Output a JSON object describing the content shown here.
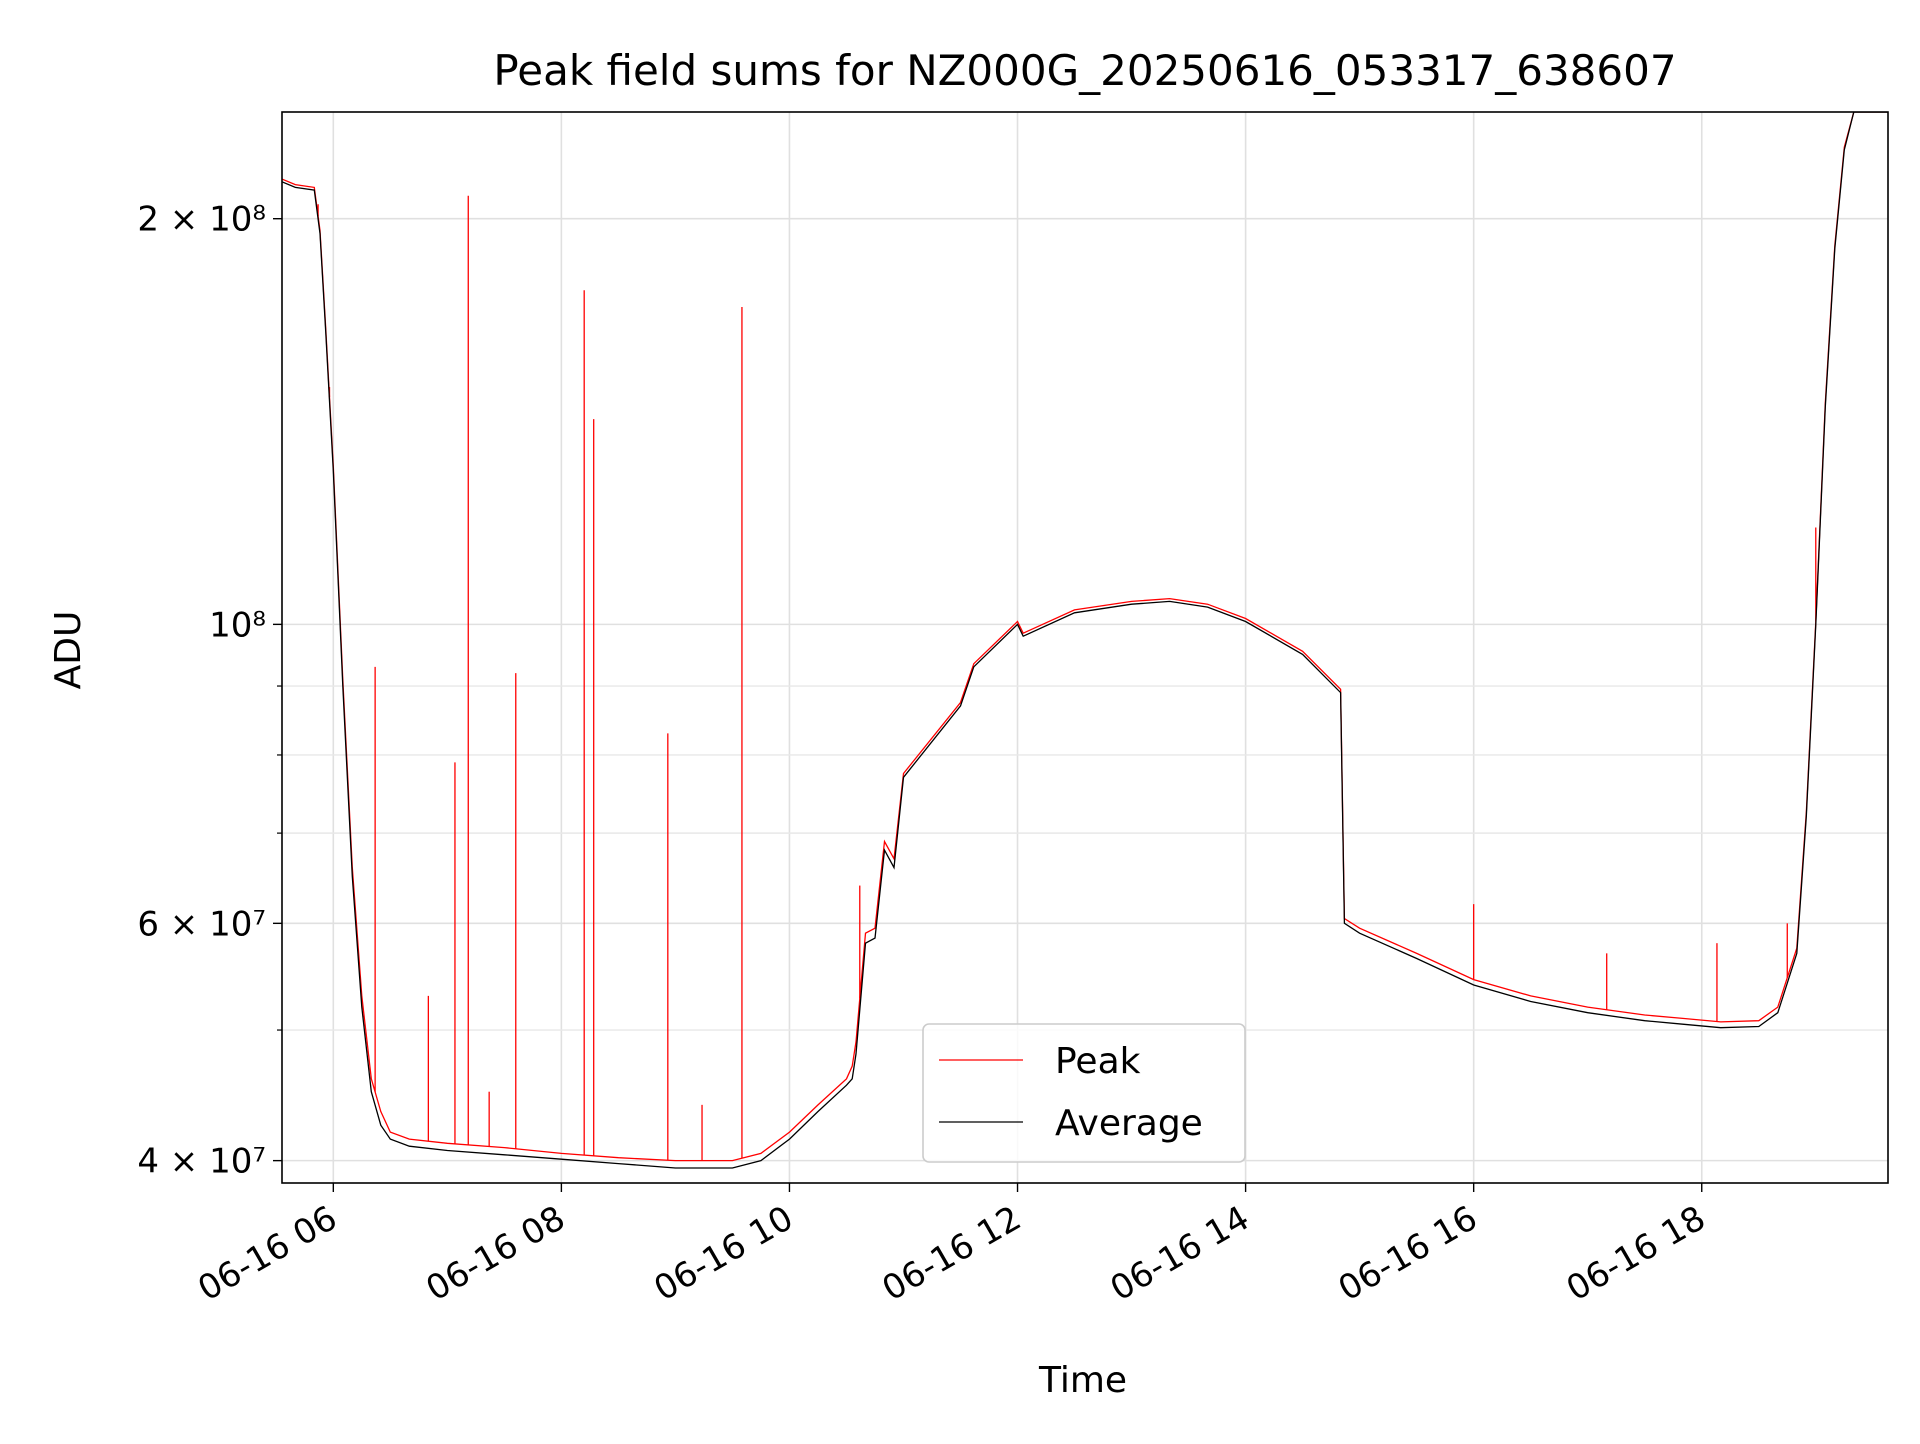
{
  "chart_data": {
    "type": "line",
    "title": "Peak field sums for NZ000G_20250616_053317_638607",
    "xlabel": "Time",
    "ylabel": "ADU",
    "y_scale": "log",
    "xlim": [
      "2025-06-16 05:33",
      "2025-06-16 19:38"
    ],
    "ylim": [
      38500000,
      240000000
    ],
    "x_ticks": [
      "06-16 06",
      "06-16 08",
      "06-16 10",
      "06-16 12",
      "06-16 14",
      "06-16 16",
      "06-16 18"
    ],
    "y_ticks": [
      "4 × 10⁷",
      "6 × 10⁷",
      "10⁸",
      "2 × 10⁸"
    ],
    "grid": true,
    "legend_position": "lower center",
    "colors": {
      "Peak": "#ff0000",
      "Average": "#000000"
    },
    "series": [
      {
        "name": "Average",
        "x": [
          "2025-06-16 05:33",
          "2025-06-16 05:40",
          "2025-06-16 05:50",
          "2025-06-16 05:53",
          "2025-06-16 05:56",
          "2025-06-16 06:00",
          "2025-06-16 06:05",
          "2025-06-16 06:10",
          "2025-06-16 06:15",
          "2025-06-16 06:20",
          "2025-06-16 06:25",
          "2025-06-16 06:30",
          "2025-06-16 06:40",
          "2025-06-16 07:00",
          "2025-06-16 07:30",
          "2025-06-16 08:00",
          "2025-06-16 08:30",
          "2025-06-16 09:00",
          "2025-06-16 09:30",
          "2025-06-16 09:45",
          "2025-06-16 10:00",
          "2025-06-16 10:15",
          "2025-06-16 10:30",
          "2025-06-16 10:33",
          "2025-06-16 10:35",
          "2025-06-16 10:40",
          "2025-06-16 10:45",
          "2025-06-16 10:50",
          "2025-06-16 10:55",
          "2025-06-16 11:00",
          "2025-06-16 11:30",
          "2025-06-16 11:37",
          "2025-06-16 12:00",
          "2025-06-16 12:03",
          "2025-06-16 12:30",
          "2025-06-16 13:00",
          "2025-06-16 13:20",
          "2025-06-16 13:40",
          "2025-06-16 14:00",
          "2025-06-16 14:30",
          "2025-06-16 14:50",
          "2025-06-16 14:52",
          "2025-06-16 15:00",
          "2025-06-16 15:30",
          "2025-06-16 16:00",
          "2025-06-16 16:30",
          "2025-06-16 17:00",
          "2025-06-16 17:30",
          "2025-06-16 17:50",
          "2025-06-16 18:10",
          "2025-06-16 18:30",
          "2025-06-16 18:40",
          "2025-06-16 18:50",
          "2025-06-16 18:55",
          "2025-06-16 19:00",
          "2025-06-16 19:05",
          "2025-06-16 19:10",
          "2025-06-16 19:15",
          "2025-06-16 19:20",
          "2025-06-16 19:25",
          "2025-06-16 19:30",
          "2025-06-16 19:38"
        ],
        "y": [
          213000000,
          211000000,
          210000000,
          195000000,
          165000000,
          130000000,
          90000000,
          65000000,
          52000000,
          45000000,
          42500000,
          41500000,
          41000000,
          40700000,
          40400000,
          40100000,
          39800000,
          39500000,
          39500000,
          40000000,
          41500000,
          43500000,
          45500000,
          46000000,
          48000000,
          58000000,
          58500000,
          68000000,
          66000000,
          77000000,
          87000000,
          93000000,
          100000000,
          98000000,
          102000000,
          103500000,
          104000000,
          103000000,
          100500000,
          95000000,
          89000000,
          60000000,
          59000000,
          56500000,
          54000000,
          52500000,
          51500000,
          50800000,
          50500000,
          50200000,
          50300000,
          51500000,
          57000000,
          72000000,
          100000000,
          145000000,
          190000000,
          225000000,
          240000000,
          242000000,
          243000000,
          243000000
        ]
      },
      {
        "name": "Peak",
        "x": [
          "2025-06-16 05:33",
          "2025-06-16 05:40",
          "2025-06-16 05:50",
          "2025-06-16 05:53",
          "2025-06-16 05:56",
          "2025-06-16 06:00",
          "2025-06-16 06:05",
          "2025-06-16 06:10",
          "2025-06-16 06:15",
          "2025-06-16 06:20",
          "2025-06-16 06:25",
          "2025-06-16 06:30",
          "2025-06-16 06:40",
          "2025-06-16 07:00",
          "2025-06-16 07:30",
          "2025-06-16 08:00",
          "2025-06-16 08:30",
          "2025-06-16 09:00",
          "2025-06-16 09:30",
          "2025-06-16 09:45",
          "2025-06-16 10:00",
          "2025-06-16 10:15",
          "2025-06-16 10:30",
          "2025-06-16 10:33",
          "2025-06-16 10:35",
          "2025-06-16 10:40",
          "2025-06-16 10:45",
          "2025-06-16 10:50",
          "2025-06-16 10:55",
          "2025-06-16 11:00",
          "2025-06-16 11:30",
          "2025-06-16 11:37",
          "2025-06-16 12:00",
          "2025-06-16 12:03",
          "2025-06-16 12:30",
          "2025-06-16 13:00",
          "2025-06-16 13:20",
          "2025-06-16 13:40",
          "2025-06-16 14:00",
          "2025-06-16 14:30",
          "2025-06-16 14:50",
          "2025-06-16 14:52",
          "2025-06-16 15:00",
          "2025-06-16 15:30",
          "2025-06-16 16:00",
          "2025-06-16 16:30",
          "2025-06-16 17:00",
          "2025-06-16 17:30",
          "2025-06-16 17:50",
          "2025-06-16 18:10",
          "2025-06-16 18:30",
          "2025-06-16 18:40",
          "2025-06-16 18:50",
          "2025-06-16 18:55",
          "2025-06-16 19:00",
          "2025-06-16 19:05",
          "2025-06-16 19:10",
          "2025-06-16 19:15",
          "2025-06-16 19:20",
          "2025-06-16 19:25",
          "2025-06-16 19:30",
          "2025-06-16 19:38"
        ],
        "y": [
          214000000,
          212000000,
          211000000,
          196000000,
          166000000,
          131000000,
          91000000,
          66000000,
          53000000,
          46000000,
          43500000,
          42000000,
          41500000,
          41200000,
          40900000,
          40500000,
          40200000,
          40000000,
          40000000,
          40500000,
          42000000,
          44000000,
          46000000,
          47000000,
          49000000,
          59000000,
          59500000,
          69000000,
          67000000,
          77500000,
          87500000,
          93500000,
          100500000,
          98500000,
          102500000,
          104000000,
          104500000,
          103500000,
          101000000,
          95500000,
          89500000,
          60500000,
          59500000,
          57000000,
          54500000,
          53000000,
          52000000,
          51300000,
          51000000,
          50700000,
          50800000,
          52000000,
          57500000,
          72500000,
          100500000,
          146000000,
          191000000,
          226000000,
          241000000,
          243000000,
          243000000,
          243000000
        ],
        "spikes": [
          {
            "x": "2025-06-16 05:52",
            "y": 205000000
          },
          {
            "x": "2025-06-16 05:58",
            "y": 150000000
          },
          {
            "x": "2025-06-16 06:22",
            "y": 93000000
          },
          {
            "x": "2025-06-16 06:50",
            "y": 53000000
          },
          {
            "x": "2025-06-16 07:04",
            "y": 79000000
          },
          {
            "x": "2025-06-16 07:11",
            "y": 208000000
          },
          {
            "x": "2025-06-16 07:22",
            "y": 45000000
          },
          {
            "x": "2025-06-16 07:36",
            "y": 92000000
          },
          {
            "x": "2025-06-16 08:12",
            "y": 177000000
          },
          {
            "x": "2025-06-16 08:17",
            "y": 142000000
          },
          {
            "x": "2025-06-16 08:56",
            "y": 83000000
          },
          {
            "x": "2025-06-16 09:14",
            "y": 44000000
          },
          {
            "x": "2025-06-16 09:35",
            "y": 172000000
          },
          {
            "x": "2025-06-16 10:37",
            "y": 64000000
          },
          {
            "x": "2025-06-16 16:00",
            "y": 62000000
          },
          {
            "x": "2025-06-16 17:10",
            "y": 57000000
          },
          {
            "x": "2025-06-16 18:08",
            "y": 58000000
          },
          {
            "x": "2025-06-16 18:45",
            "y": 60000000
          },
          {
            "x": "2025-06-16 19:00",
            "y": 118000000
          }
        ]
      }
    ]
  }
}
